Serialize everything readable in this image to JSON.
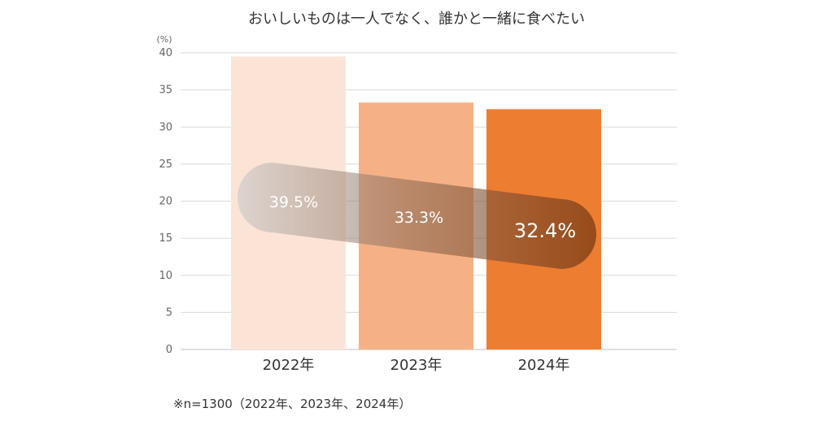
{
  "chart_data": {
    "type": "bar",
    "title": "おいしいものは一人でなく、誰かと一緒に食べたい",
    "ylabel": "(%)",
    "ylim": [
      0,
      40
    ],
    "yticks": [
      0,
      5,
      10,
      15,
      20,
      25,
      30,
      35,
      40
    ],
    "grid": true,
    "categories": [
      "2022年",
      "2023年",
      "2024年"
    ],
    "values": [
      39.5,
      33.3,
      32.4
    ],
    "data_labels": [
      "39.5%",
      "33.3%",
      "32.4%"
    ],
    "colors": [
      "#fbe4d6",
      "#f5b185",
      "#ed7d31"
    ],
    "trend_band": true,
    "note": "※n=1300（2022年、2023年、2024年）"
  }
}
